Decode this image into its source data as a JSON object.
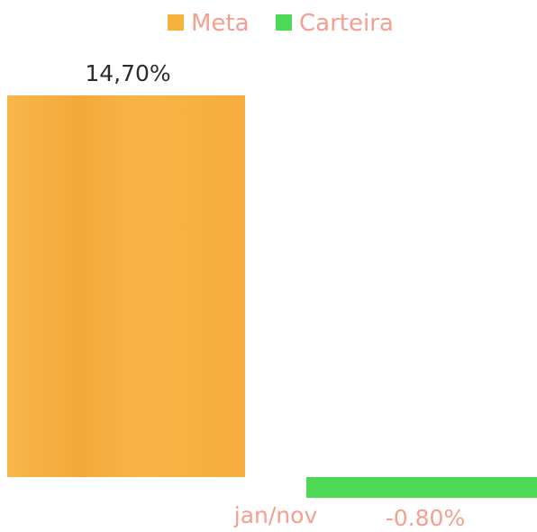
{
  "chart_data": {
    "type": "bar",
    "categories": [
      "jan/nov"
    ],
    "series": [
      {
        "name": "Meta",
        "values": [
          14.7
        ],
        "label": "14,70%",
        "color": "#f6b13e"
      },
      {
        "name": "Carteira",
        "values": [
          -0.8
        ],
        "label": "-0.80%",
        "color": "#4dd955"
      }
    ],
    "legend": "top",
    "grid": false,
    "label_color": "#f4a091",
    "value_label_color": "#2b2b2b"
  }
}
